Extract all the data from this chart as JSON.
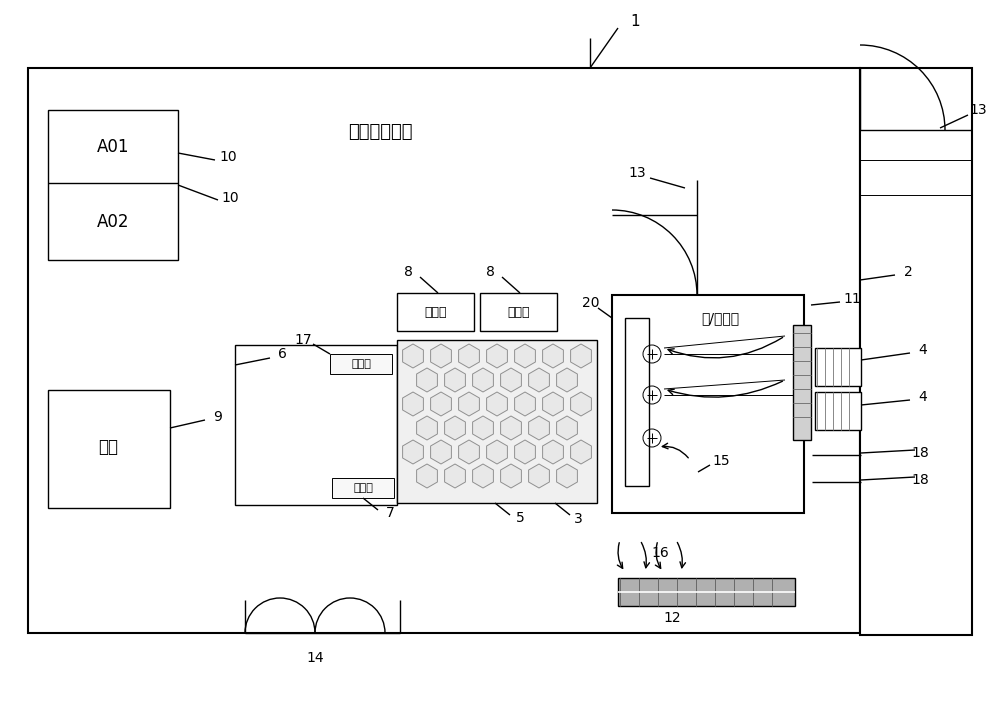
{
  "bg": "#ffffff",
  "lc": "#000000",
  "gray": "#888888",
  "lgray": "#c0c0c0",
  "hex_face": "#e8e8e8",
  "hex_edge": "#909090",
  "room_title": "柴油发电机室",
  "air_room": "进/排风室",
  "A01": "A01",
  "A02": "A02",
  "youxiang": "油筱",
  "kaiguanxiang": "开关筱",
  "kongzhixiang": "控制筱",
  "xdc": "蓄电池"
}
